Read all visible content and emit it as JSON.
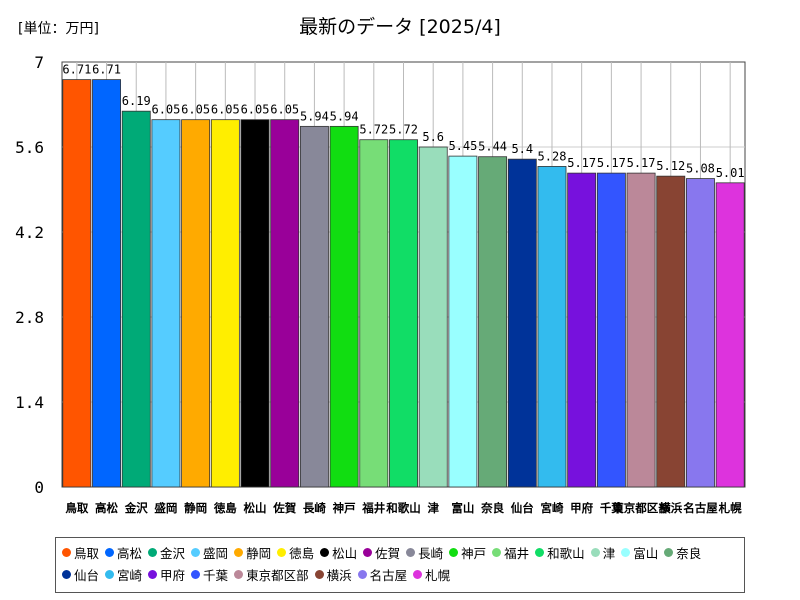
{
  "header": {
    "unit": "[単位：万円]",
    "title": "最新のデータ [2025/4]"
  },
  "chart_data": {
    "type": "bar",
    "categories": [
      "鳥取",
      "高松",
      "金沢",
      "盛岡",
      "静岡",
      "徳島",
      "松山",
      "佐賀",
      "長崎",
      "神戸",
      "福井",
      "和歌山",
      "津",
      "富山",
      "奈良",
      "仙台",
      "宮崎",
      "甲府",
      "千葉",
      "東京都区部",
      "横浜",
      "名古屋",
      "札幌"
    ],
    "values": [
      6.71,
      6.71,
      6.19,
      6.05,
      6.05,
      6.05,
      6.05,
      6.05,
      5.94,
      5.94,
      5.72,
      5.72,
      5.6,
      5.45,
      5.44,
      5.4,
      5.28,
      5.17,
      5.17,
      5.17,
      5.12,
      5.08,
      5.01
    ],
    "value_labels": [
      "6.71",
      "6.71",
      "6.19",
      "6.05",
      "6.05",
      "6.05",
      "6.05",
      "6.05",
      "5.94",
      "5.94",
      "5.72",
      "5.72",
      "5.6",
      "5.45",
      "5.44",
      "5.4",
      "5.28",
      "5.17",
      "5.17",
      "5.17",
      "5.12",
      "5.08",
      "5.01"
    ],
    "colors": [
      "#ff5500",
      "#0066ff",
      "#00aa77",
      "#55ccff",
      "#ffaa00",
      "#ffee00",
      "#000000",
      "#990099",
      "#888899",
      "#11dd11",
      "#77dd77",
      "#11dd66",
      "#99ddbb",
      "#99ffff",
      "#66aa77",
      "#003399",
      "#33bbee",
      "#7711dd",
      "#3355ff",
      "#bb8899",
      "#884433",
      "#8877ee",
      "#dd33dd"
    ],
    "ylim": [
      0,
      7
    ],
    "yticks": [
      "0",
      "1.4",
      "2.8",
      "4.2",
      "5.6",
      "7"
    ],
    "grid": true,
    "legend_position": "bottom"
  }
}
